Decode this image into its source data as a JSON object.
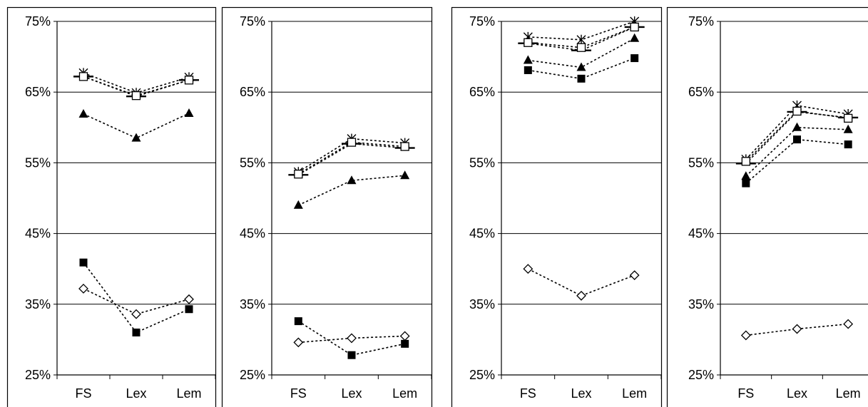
{
  "chart_data": [
    {
      "type": "line",
      "categories": [
        "FS",
        "Lex",
        "Lem"
      ],
      "ylim": [
        0.25,
        0.75
      ],
      "yticks": [
        "25%",
        "35%",
        "45%",
        "55%",
        "65%",
        "75%"
      ],
      "grid": true,
      "series": [
        {
          "marker": "star",
          "values": [
            0.677,
            0.649,
            0.671
          ]
        },
        {
          "marker": "dash",
          "values": [
            0.672,
            0.644,
            0.667
          ]
        },
        {
          "marker": "open-square",
          "values": [
            0.672,
            0.645,
            0.667
          ]
        },
        {
          "marker": "triangle",
          "values": [
            0.619,
            0.585,
            0.62
          ]
        },
        {
          "marker": "square",
          "values": [
            0.409,
            0.31,
            0.343
          ]
        },
        {
          "marker": "diamond",
          "values": [
            0.372,
            0.336,
            0.357
          ]
        }
      ]
    },
    {
      "type": "line",
      "categories": [
        "FS",
        "Lex",
        "Lem"
      ],
      "ylim": [
        0.25,
        0.75
      ],
      "yticks": [
        "25%",
        "35%",
        "45%",
        "55%",
        "65%",
        "75%"
      ],
      "grid": true,
      "series": [
        {
          "marker": "star",
          "values": [
            0.537,
            0.584,
            0.578
          ]
        },
        {
          "marker": "dash",
          "values": [
            0.533,
            0.577,
            0.571
          ]
        },
        {
          "marker": "open-square",
          "values": [
            0.534,
            0.579,
            0.573
          ]
        },
        {
          "marker": "triangle",
          "values": [
            0.49,
            0.525,
            0.532
          ]
        },
        {
          "marker": "square",
          "values": [
            0.326,
            0.278,
            0.294
          ]
        },
        {
          "marker": "diamond",
          "values": [
            0.296,
            0.302,
            0.305
          ]
        }
      ]
    },
    {
      "type": "line",
      "categories": [
        "FS",
        "Lex",
        "Lem"
      ],
      "ylim": [
        0.25,
        0.75
      ],
      "yticks": [
        "25%",
        "35%",
        "45%",
        "55%",
        "65%",
        "75%"
      ],
      "grid": true,
      "series": [
        {
          "marker": "star",
          "values": [
            0.728,
            0.724,
            0.75
          ]
        },
        {
          "marker": "dash",
          "values": [
            0.719,
            0.709,
            0.742
          ]
        },
        {
          "marker": "open-square",
          "values": [
            0.72,
            0.713,
            0.742
          ]
        },
        {
          "marker": "triangle",
          "values": [
            0.695,
            0.685,
            0.726
          ]
        },
        {
          "marker": "square",
          "values": [
            0.681,
            0.669,
            0.698
          ]
        },
        {
          "marker": "diamond",
          "values": [
            0.4,
            0.362,
            0.391
          ]
        }
      ]
    },
    {
      "type": "line",
      "categories": [
        "FS",
        "Lex",
        "Lem"
      ],
      "ylim": [
        0.25,
        0.75
      ],
      "yticks": [
        "25%",
        "35%",
        "45%",
        "55%",
        "65%",
        "75%"
      ],
      "grid": true,
      "series": [
        {
          "marker": "star",
          "values": [
            0.555,
            0.631,
            0.619
          ]
        },
        {
          "marker": "dash",
          "values": [
            0.549,
            0.622,
            0.614
          ]
        },
        {
          "marker": "open-square",
          "values": [
            0.552,
            0.623,
            0.613
          ]
        },
        {
          "marker": "triangle",
          "values": [
            0.531,
            0.6,
            0.597
          ]
        },
        {
          "marker": "square",
          "values": [
            0.521,
            0.583,
            0.576
          ]
        },
        {
          "marker": "diamond",
          "values": [
            0.306,
            0.315,
            0.322
          ]
        }
      ]
    }
  ]
}
